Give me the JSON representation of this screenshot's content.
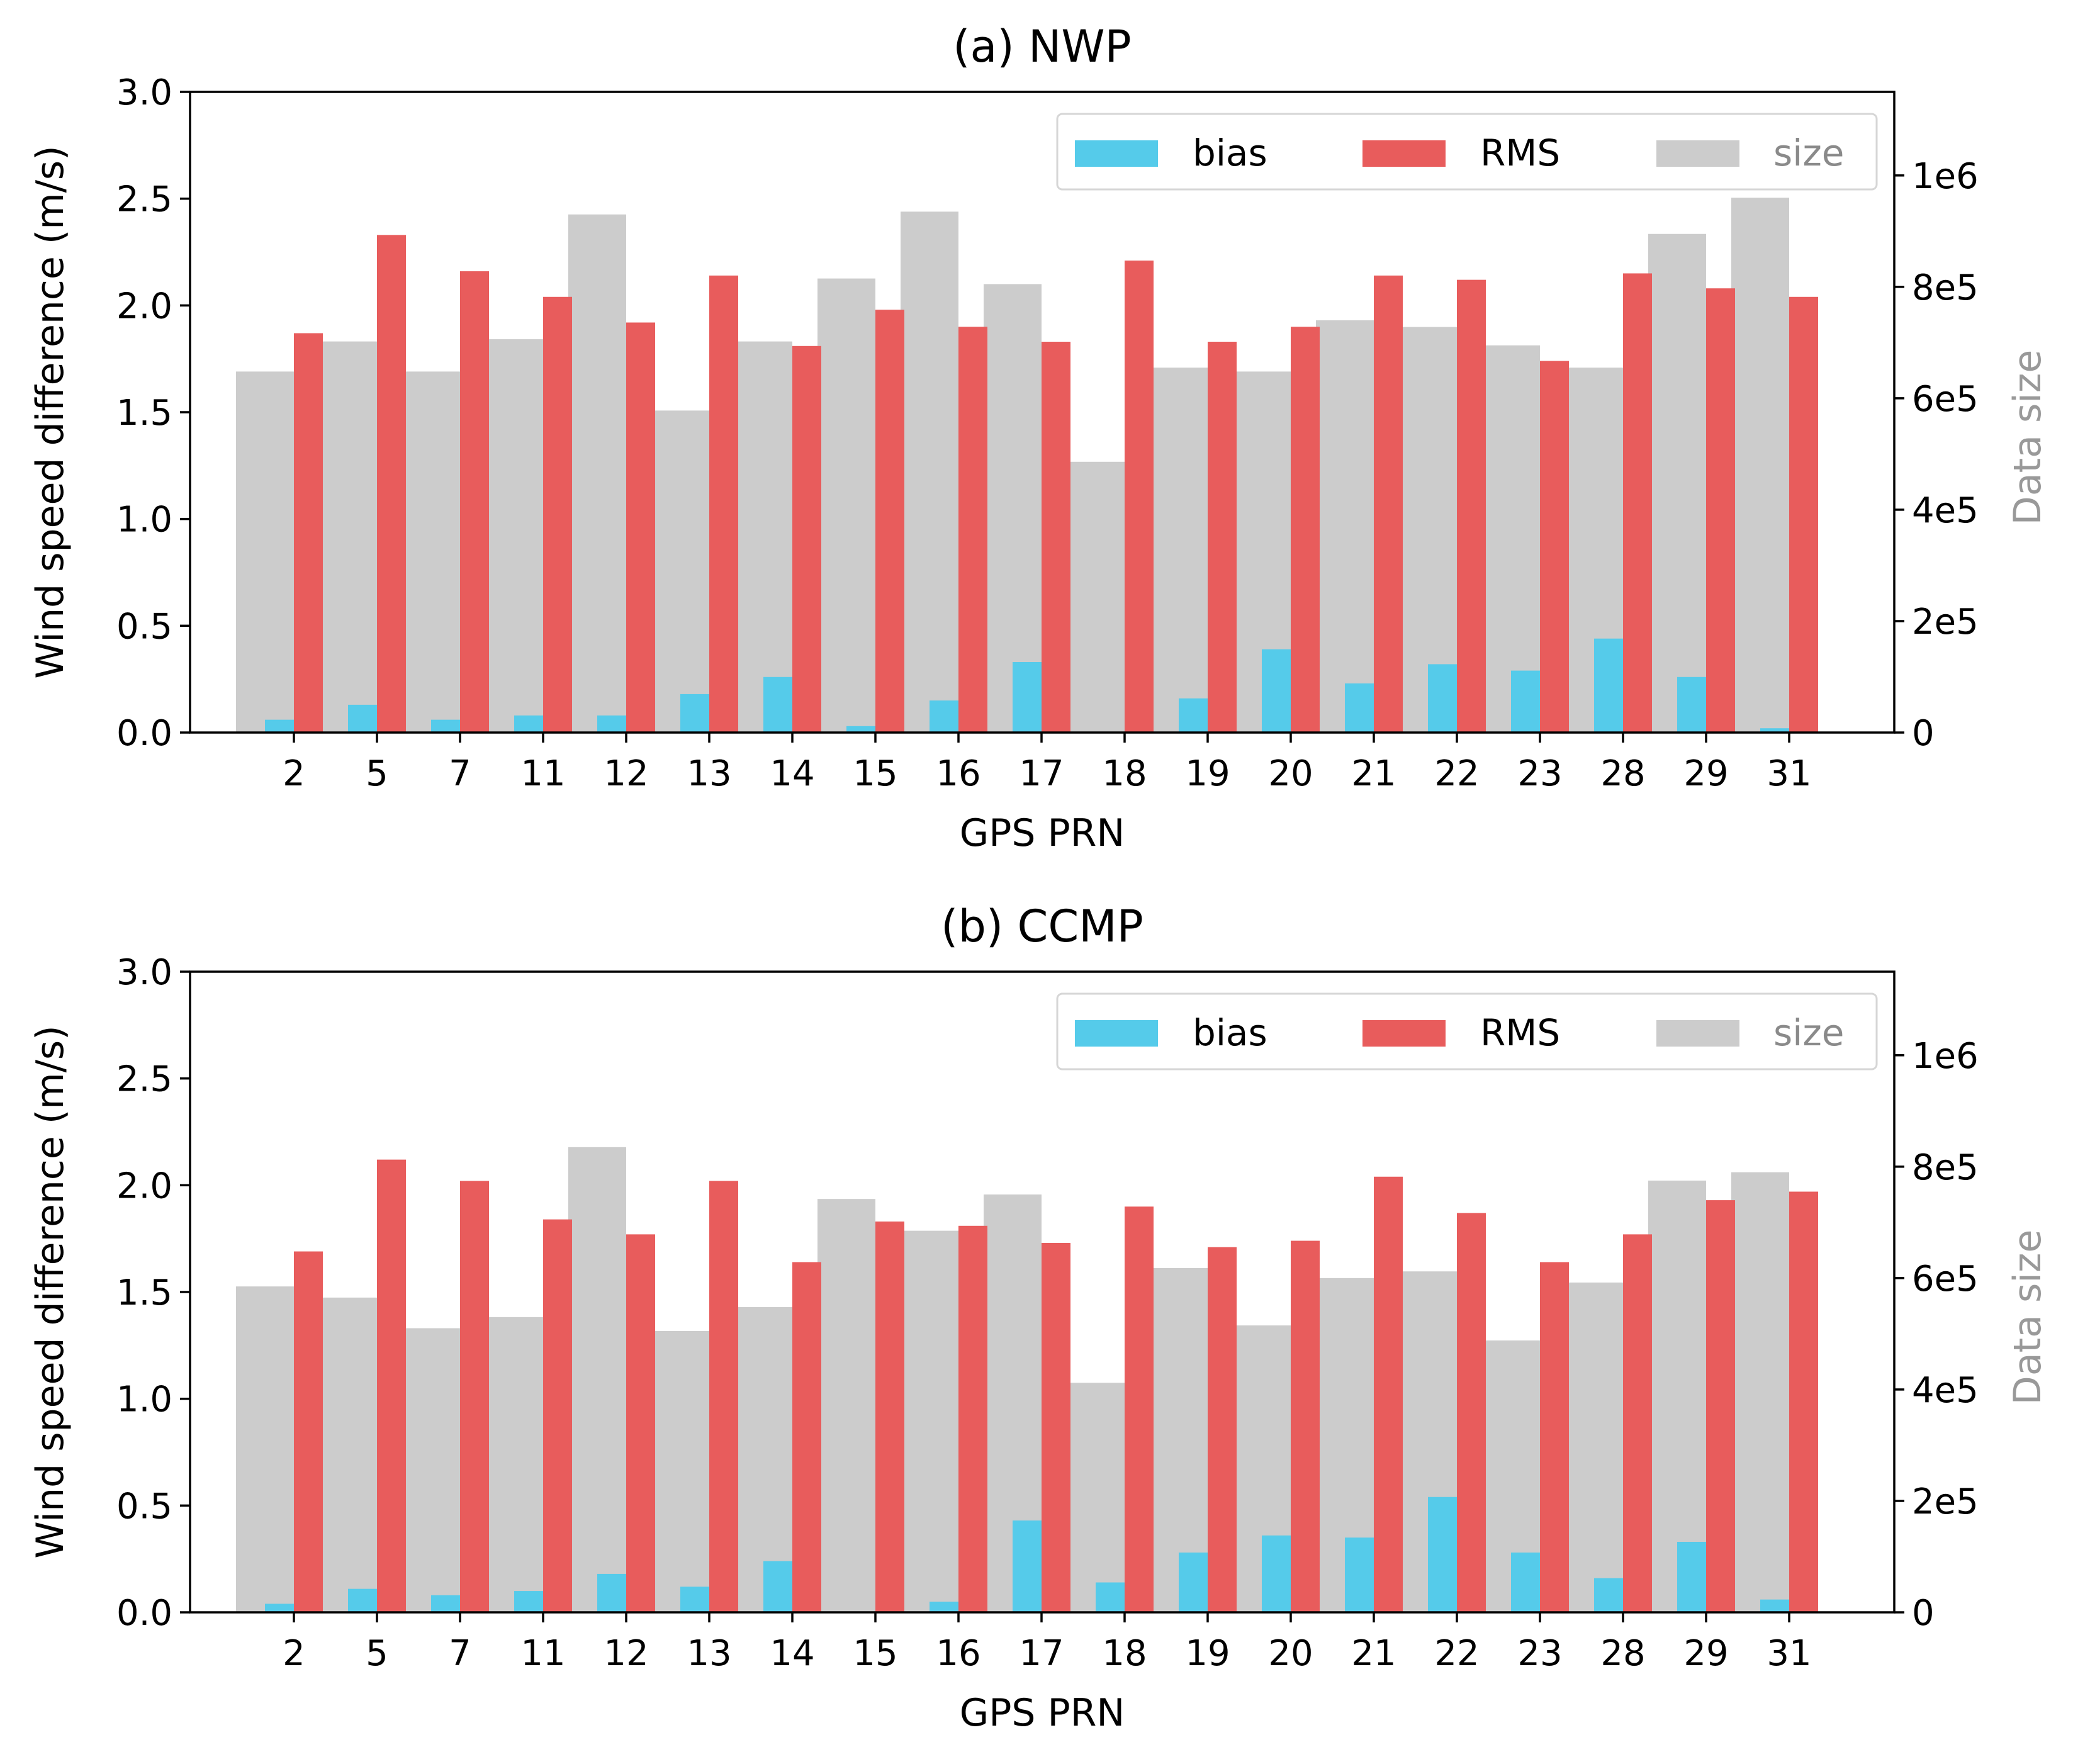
{
  "chart_data": [
    {
      "id": "nwp",
      "type": "bar",
      "title": "(a) NWP",
      "xlabel": "GPS PRN",
      "ylabel": "Wind speed difference (m/s)",
      "y2label": "Data size",
      "ylim": [
        0,
        3.0
      ],
      "y2lim": [
        0,
        1150000
      ],
      "yticks": [
        "0.0",
        "0.5",
        "1.0",
        "1.5",
        "2.0",
        "2.5",
        "3.0"
      ],
      "y2ticks": [
        "0",
        "2e5",
        "4e5",
        "6e5",
        "8e5",
        "1e6"
      ],
      "categories": [
        "2",
        "5",
        "7",
        "11",
        "12",
        "13",
        "14",
        "15",
        "16",
        "17",
        "18",
        "19",
        "20",
        "21",
        "22",
        "23",
        "28",
        "29",
        "31"
      ],
      "legend": {
        "placement": "top-right",
        "labels": [
          "bias",
          "RMS",
          "size"
        ]
      },
      "series": [
        {
          "name": "bias",
          "axis": "left",
          "values": [
            0.06,
            0.13,
            0.06,
            0.08,
            0.08,
            0.18,
            0.26,
            0.03,
            0.15,
            0.33,
            0.0,
            0.16,
            0.39,
            0.23,
            0.32,
            0.29,
            0.44,
            0.26,
            0.02
          ]
        },
        {
          "name": "RMS",
          "axis": "left",
          "values": [
            1.87,
            2.33,
            2.16,
            2.04,
            1.92,
            2.14,
            1.81,
            1.98,
            1.9,
            1.83,
            2.21,
            1.83,
            1.9,
            2.14,
            2.12,
            1.74,
            2.15,
            2.08,
            2.04
          ]
        },
        {
          "name": "size",
          "axis": "right",
          "values": [
            648000,
            702000,
            648000,
            706000,
            930000,
            578000,
            702000,
            815000,
            935000,
            805000,
            486000,
            655000,
            648000,
            740000,
            728000,
            695000,
            655000,
            895000,
            960000
          ]
        }
      ]
    },
    {
      "id": "ccmp",
      "type": "bar",
      "title": "(b) CCMP",
      "xlabel": "GPS PRN",
      "ylabel": "Wind speed difference (m/s)",
      "y2label": "Data size",
      "ylim": [
        0,
        3.0
      ],
      "y2lim": [
        0,
        1150000
      ],
      "yticks": [
        "0.0",
        "0.5",
        "1.0",
        "1.5",
        "2.0",
        "2.5",
        "3.0"
      ],
      "y2ticks": [
        "0",
        "2e5",
        "4e5",
        "6e5",
        "8e5",
        "1e6"
      ],
      "categories": [
        "2",
        "5",
        "7",
        "11",
        "12",
        "13",
        "14",
        "15",
        "16",
        "17",
        "18",
        "19",
        "20",
        "21",
        "22",
        "23",
        "28",
        "29",
        "31"
      ],
      "legend": {
        "placement": "top-right",
        "labels": [
          "bias",
          "RMS",
          "size"
        ]
      },
      "series": [
        {
          "name": "bias",
          "axis": "left",
          "values": [
            0.04,
            0.11,
            0.08,
            0.1,
            0.18,
            0.12,
            0.24,
            0.0,
            0.05,
            0.43,
            0.14,
            0.28,
            0.36,
            0.35,
            0.54,
            0.28,
            0.16,
            0.33,
            0.06
          ]
        },
        {
          "name": "RMS",
          "axis": "left",
          "values": [
            1.69,
            2.12,
            2.02,
            1.84,
            1.77,
            2.02,
            1.64,
            1.83,
            1.81,
            1.73,
            1.9,
            1.71,
            1.74,
            2.04,
            1.87,
            1.64,
            1.77,
            1.93,
            1.97
          ]
        },
        {
          "name": "size",
          "axis": "right",
          "values": [
            585000,
            565000,
            510000,
            530000,
            835000,
            505000,
            548000,
            742000,
            685000,
            750000,
            412000,
            618000,
            515000,
            600000,
            612000,
            488000,
            592000,
            775000,
            790000
          ]
        }
      ]
    }
  ],
  "colors": {
    "bias": "#55cbea",
    "RMS": "#e85c5c",
    "size": "#cccccc"
  }
}
